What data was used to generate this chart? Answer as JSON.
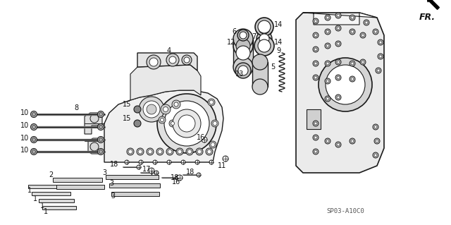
{
  "bg_color": "#ffffff",
  "line_color": "#1a1a1a",
  "diagram_code": "SP03-A10C0",
  "fig_width": 6.4,
  "fig_height": 3.19,
  "dpi": 100
}
